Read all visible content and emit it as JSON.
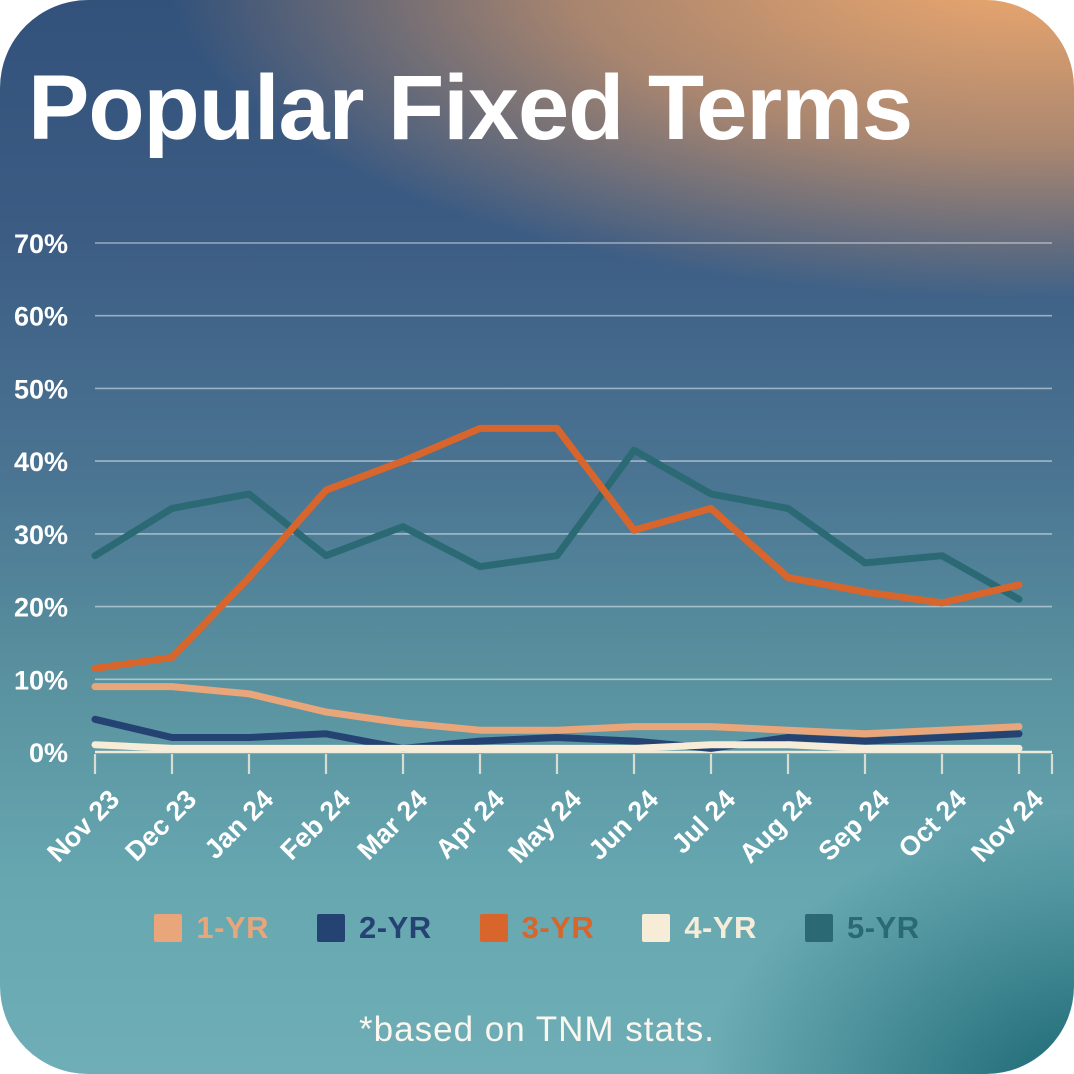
{
  "chart_data": {
    "type": "line",
    "title": "Popular Fixed Terms",
    "source_note": "*based on TNM stats.",
    "x_categories": [
      "Nov 23",
      "Dec 23",
      "Jan 24",
      "Feb 24",
      "Mar 24",
      "Apr 24",
      "May 24",
      "Jun 24",
      "Jul 24",
      "Aug 24",
      "Sep 24",
      "Oct 24",
      "Nov 24"
    ],
    "y_axis": {
      "unit": "%",
      "min": 0,
      "max": 70,
      "tick_step": 10,
      "tick_labels": [
        "0%",
        "10%",
        "20%",
        "30%",
        "40%",
        "50%",
        "60%",
        "70%"
      ]
    },
    "grid": true,
    "legend_position": "bottom",
    "series": [
      {
        "name": "1-YR",
        "color": "#E9A67A",
        "values": [
          9,
          9,
          8,
          5.5,
          4,
          3,
          3,
          3.5,
          3.5,
          3,
          2.5,
          3,
          3.5
        ]
      },
      {
        "name": "2-YR",
        "color": "#254372",
        "values": [
          4.5,
          2,
          2,
          2.5,
          0.5,
          1.5,
          2,
          1.5,
          0.5,
          2,
          1.5,
          2,
          2.5
        ]
      },
      {
        "name": "3-YR",
        "color": "#D8652C",
        "values": [
          11.5,
          13,
          24,
          36,
          40,
          44.5,
          44.5,
          30.5,
          33.5,
          24,
          22,
          20.5,
          23
        ]
      },
      {
        "name": "4-YR",
        "color": "#F6ECD8",
        "values": [
          1,
          0.5,
          0.5,
          0.5,
          0.5,
          0.5,
          0.5,
          0.5,
          1,
          1,
          0.5,
          0.5,
          0.5
        ]
      },
      {
        "name": "5-YR",
        "color": "#2B6A74",
        "values": [
          27,
          33.5,
          35.5,
          27,
          31,
          25.5,
          27,
          41.5,
          35.5,
          33.5,
          26,
          27,
          21
        ]
      }
    ]
  },
  "theme": {
    "background_top": "#33527B",
    "background_mid": "#4A7492",
    "background_bottom": "#6FAEB6",
    "glow_orange": "#F7AC6E",
    "corner_teal": "#15707E",
    "grid_line": "rgba(255,255,255,0.48)",
    "axis_line": "rgba(244,238,222,0.95)",
    "tick_mark": "rgba(244,238,222,0.8)",
    "label_text": "#FFFFFF"
  }
}
